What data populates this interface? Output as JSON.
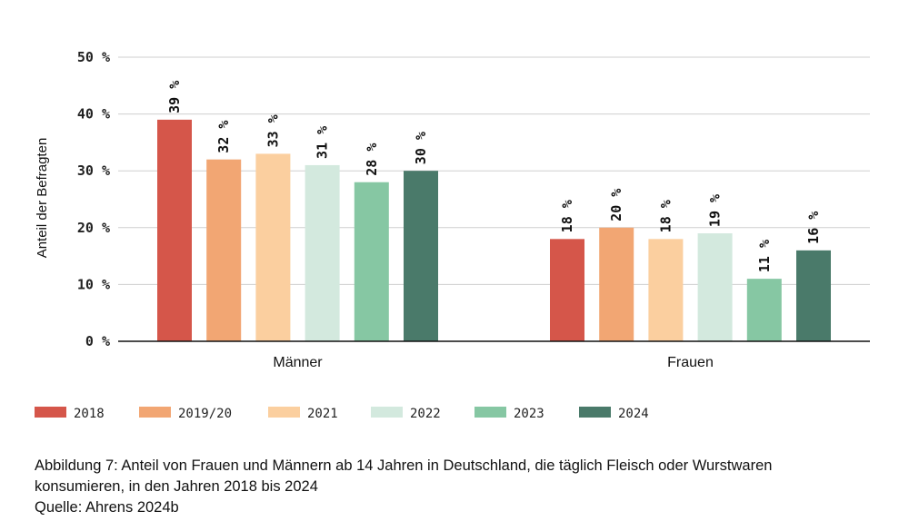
{
  "chart_data": {
    "type": "bar",
    "ylabel": "Anteil der Befragten",
    "xlabel": "",
    "ylim": [
      0,
      50
    ],
    "yticks": [
      "0 %",
      "10 %",
      "20 %",
      "30 %",
      "40 %",
      "50 %"
    ],
    "ytick_values": [
      0,
      10,
      20,
      30,
      40,
      50
    ],
    "categories": [
      "Männer",
      "Frauen"
    ],
    "series": [
      {
        "name": "2018",
        "color": "#d5564a",
        "values": [
          39,
          18
        ],
        "labels": [
          "39 %",
          "18 %"
        ]
      },
      {
        "name": "2019/20",
        "color": "#f2a673",
        "values": [
          32,
          20
        ],
        "labels": [
          "32 %",
          "20 %"
        ]
      },
      {
        "name": "2021",
        "color": "#fbcf9f",
        "values": [
          33,
          18
        ],
        "labels": [
          "33 %",
          "18 %"
        ]
      },
      {
        "name": "2022",
        "color": "#d3e9de",
        "values": [
          31,
          19
        ],
        "labels": [
          "31 %",
          "19 %"
        ]
      },
      {
        "name": "2023",
        "color": "#86c7a3",
        "values": [
          28,
          11
        ],
        "labels": [
          "28 %",
          "11 %"
        ]
      },
      {
        "name": "2024",
        "color": "#4a7a6a",
        "values": [
          30,
          16
        ],
        "labels": [
          "30 %",
          "16 %"
        ]
      }
    ],
    "grid": true,
    "legend_position": "bottom"
  },
  "caption": {
    "line1": "Abbildung 7: Anteil von Frauen und Männern ab 14 Jahren in Deutschland, die täglich Fleisch oder Wurstwaren",
    "line2": "konsumieren, in den Jahren 2018 bis 2024",
    "line3": "Quelle: Ahrens 2024b"
  }
}
